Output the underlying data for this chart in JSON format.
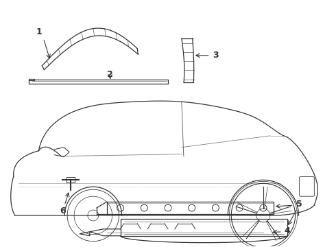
{
  "background_color": "#ffffff",
  "line_color": "#333333",
  "label_color": "#000000",
  "figsize": [
    4.9,
    3.6
  ],
  "dpi": 100,
  "car": {
    "body_color": "#ffffff"
  }
}
